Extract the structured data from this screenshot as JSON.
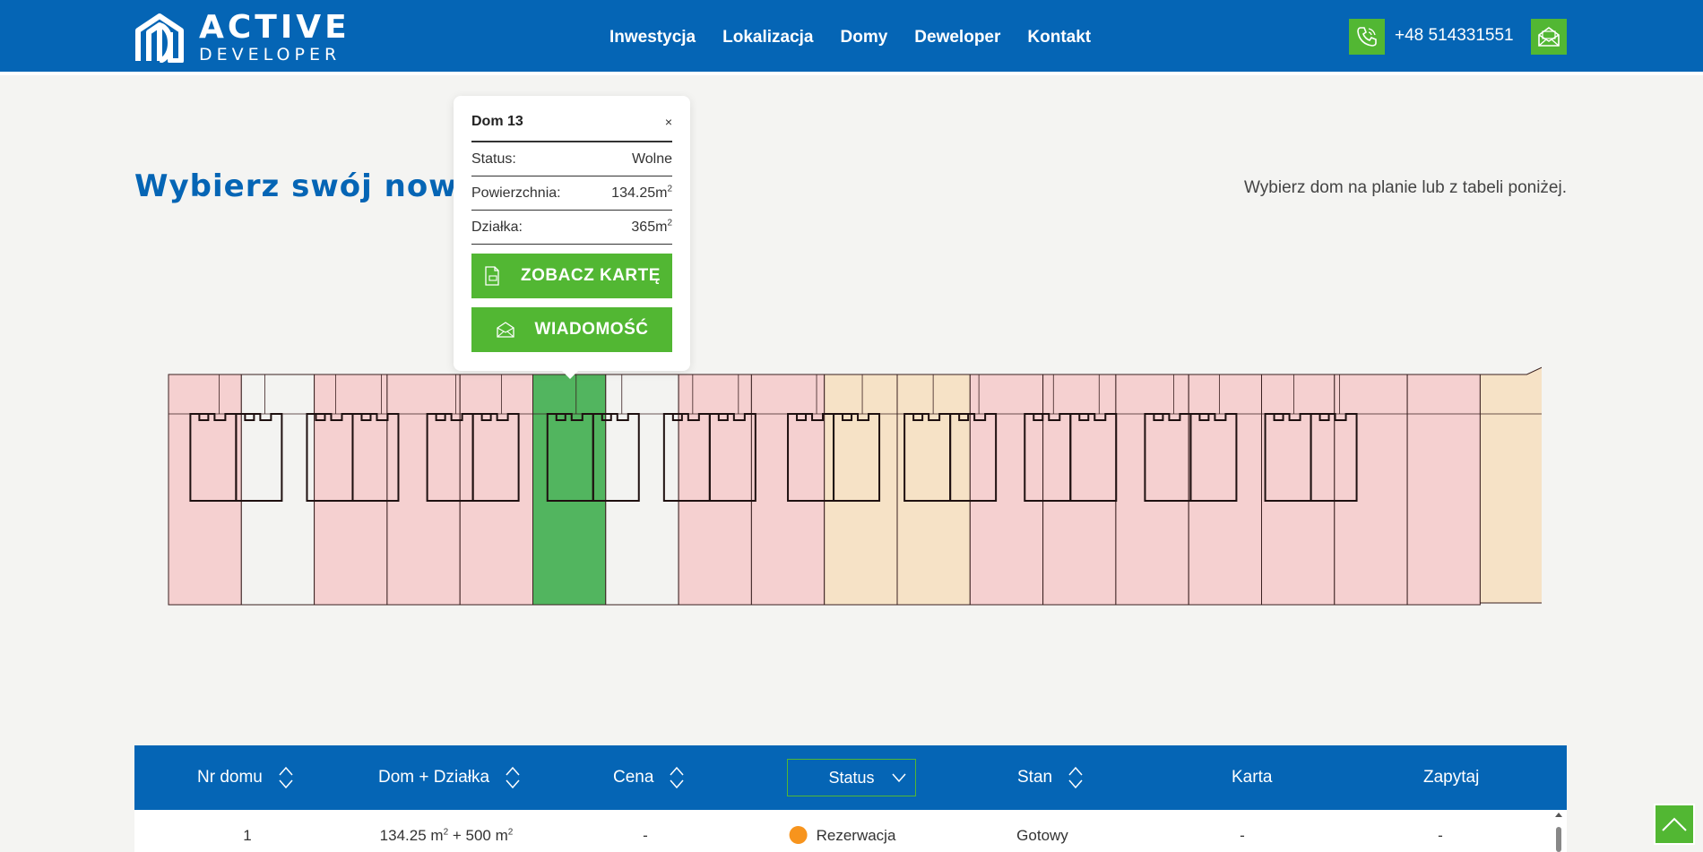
{
  "header": {
    "logo_title": "ACTIVE",
    "logo_subtitle": "DEVELOPER",
    "nav": [
      "Inwestycja",
      "Lokalizacja",
      "Domy",
      "Deweloper",
      "Kontakt"
    ],
    "phone": "+48 514331551",
    "icons": {
      "phone": "phone-icon",
      "mail": "mail-icon"
    }
  },
  "main": {
    "title": "Wybierz swój nowy dom",
    "hint": "Wybierz dom na planie lub z tabeli poniżej."
  },
  "popup": {
    "title": "Dom 13",
    "close": "×",
    "rows": [
      {
        "label": "Status:",
        "value": "Wolne",
        "unit": ""
      },
      {
        "label": "Powierzchnia:",
        "value": "134.25m",
        "unit": "2"
      },
      {
        "label": "Działka:",
        "value": "365m",
        "unit": "2"
      }
    ],
    "buttons": [
      "ZOBACZ KARTĘ",
      "WIADOMOŚĆ"
    ]
  },
  "plan": {
    "colors": {
      "sold": "#f5d0d0",
      "free": "#f3f3f1",
      "reserved": "#f6e2c6",
      "selected": "#52b55f",
      "line": "#3a2020"
    },
    "lots": [
      "sold",
      "free",
      "sold",
      "sold",
      "sold",
      "selected",
      "free",
      "sold",
      "sold",
      "reserved",
      "reserved",
      "sold",
      "sold",
      "sold",
      "sold",
      "sold",
      "sold",
      "sold",
      "reserved"
    ]
  },
  "table": {
    "headers": {
      "nr": "Nr domu",
      "dom": "Dom + Działka",
      "cena": "Cena",
      "status": "Status",
      "stan": "Stan",
      "karta": "Karta",
      "zapytaj": "Zapytaj"
    },
    "rows": [
      {
        "nr": "1",
        "dom": "134.25 m",
        "dom_sup": "2",
        "dom_mid": " + 500 m",
        "dom_sup2": "2",
        "cena": "-",
        "status": "Rezerwacja",
        "stan": "Gotowy",
        "karta": "-",
        "zapytaj": "-"
      }
    ]
  }
}
